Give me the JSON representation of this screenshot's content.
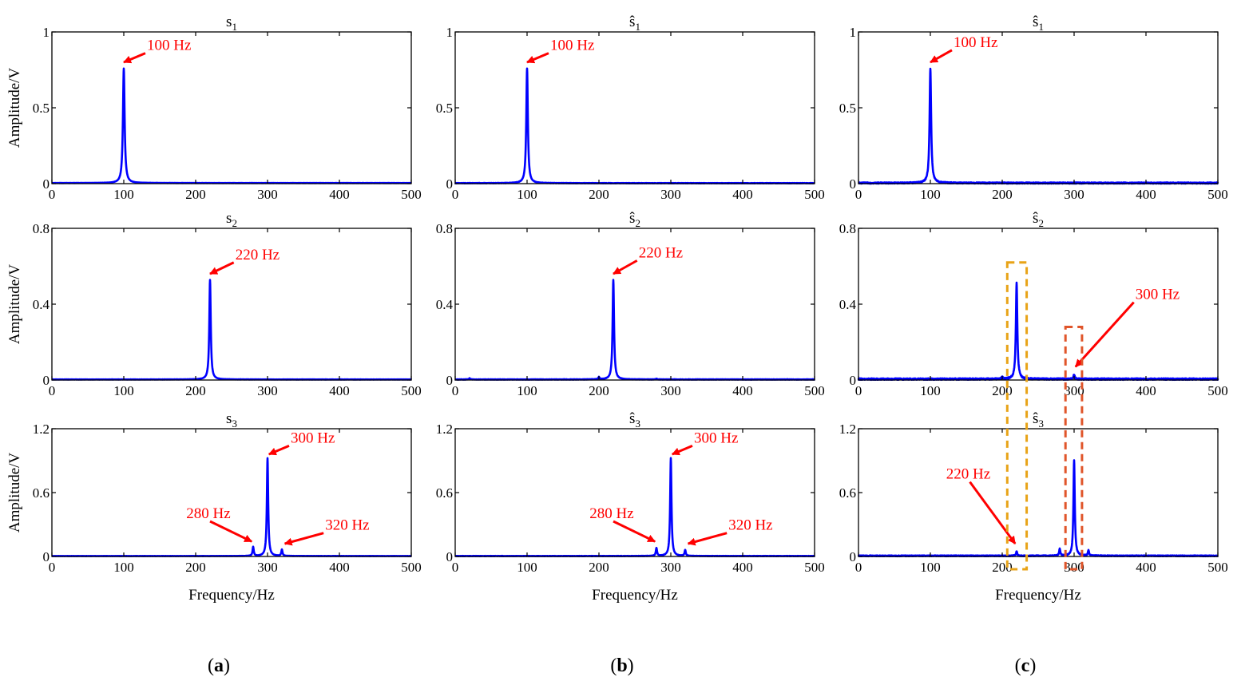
{
  "figure": {
    "column_labels": [
      "a",
      "b",
      "c"
    ],
    "x_axis_label": "Frequency/Hz",
    "y_axis_label": "Amplitude/V",
    "colors": {
      "line": "#0000ff",
      "annotation": "#ff0000",
      "axis": "#000000",
      "highlight_220": "#e8a317",
      "highlight_300": "#e0552a"
    }
  },
  "chart_data": [
    {
      "id": "a1",
      "type": "line",
      "title": "s1",
      "title_base": "s",
      "title_sub": "1",
      "hat": false,
      "xlim": [
        0,
        500
      ],
      "ylim": [
        0,
        1
      ],
      "xticks": [
        0,
        100,
        200,
        300,
        400,
        500
      ],
      "yticks": [
        0,
        0.5,
        1
      ],
      "ytick_labels": [
        "0",
        "0.5",
        "1"
      ],
      "ylabel": "Amplitude/V",
      "xlabel": "",
      "noise": 0.0006,
      "baseline": 0.004,
      "peaks": [
        {
          "f": 100,
          "a": 0.755,
          "w": 1.4
        }
      ],
      "annotations": [
        {
          "text": "100 Hz",
          "target": [
            100,
            0.8
          ],
          "label": [
            130,
            0.86
          ]
        }
      ]
    },
    {
      "id": "b1",
      "type": "line",
      "title": "ŝ1",
      "title_base": "s",
      "title_sub": "1",
      "hat": true,
      "xlim": [
        0,
        500
      ],
      "ylim": [
        0,
        1
      ],
      "xticks": [
        0,
        100,
        200,
        300,
        400,
        500
      ],
      "yticks": [
        0,
        0.5,
        1
      ],
      "ytick_labels": [
        "0",
        "0.5",
        "1"
      ],
      "ylabel": "",
      "xlabel": "",
      "noise": 0.0012,
      "baseline": 0.003,
      "peaks": [
        {
          "f": 100,
          "a": 0.755,
          "w": 1.3
        }
      ],
      "annotations": [
        {
          "text": "100 Hz",
          "target": [
            100,
            0.8
          ],
          "label": [
            130,
            0.86
          ]
        }
      ]
    },
    {
      "id": "c1",
      "type": "line",
      "title": "ŝ1",
      "title_base": "s",
      "title_sub": "1",
      "hat": true,
      "xlim": [
        0,
        500
      ],
      "ylim": [
        0,
        1
      ],
      "xticks": [
        0,
        100,
        200,
        300,
        400,
        500
      ],
      "yticks": [
        0,
        0.5,
        1
      ],
      "ytick_labels": [
        "0",
        "0.5",
        "1"
      ],
      "ylabel": "",
      "xlabel": "",
      "noise": 0.004,
      "baseline": 0.004,
      "peaks": [
        {
          "f": 100,
          "a": 0.755,
          "w": 1.3
        }
      ],
      "annotations": [
        {
          "text": "100 Hz",
          "target": [
            100,
            0.8
          ],
          "label": [
            130,
            0.88
          ]
        }
      ]
    },
    {
      "id": "a2",
      "type": "line",
      "title": "s2",
      "title_base": "s",
      "title_sub": "2",
      "hat": false,
      "xlim": [
        0,
        500
      ],
      "ylim": [
        0,
        0.8
      ],
      "xticks": [
        0,
        100,
        200,
        300,
        400,
        500
      ],
      "yticks": [
        0,
        0.4,
        0.8
      ],
      "ytick_labels": [
        "0",
        "0.4",
        "0.8"
      ],
      "ylabel": "Amplitude/V",
      "xlabel": "",
      "noise": 0.0006,
      "baseline": 0.003,
      "peaks": [
        {
          "f": 220,
          "a": 0.525,
          "w": 1.2
        }
      ],
      "annotations": [
        {
          "text": "220 Hz",
          "target": [
            220,
            0.56
          ],
          "label": [
            253,
            0.62
          ]
        }
      ]
    },
    {
      "id": "b2",
      "type": "line",
      "title": "ŝ2",
      "title_base": "s",
      "title_sub": "2",
      "hat": true,
      "xlim": [
        0,
        500
      ],
      "ylim": [
        0,
        0.8
      ],
      "xticks": [
        0,
        100,
        200,
        300,
        400,
        500
      ],
      "yticks": [
        0,
        0.4,
        0.8
      ],
      "ytick_labels": [
        "0",
        "0.4",
        "0.8"
      ],
      "ylabel": "",
      "xlabel": "",
      "noise": 0.001,
      "baseline": 0.003,
      "peaks": [
        {
          "f": 220,
          "a": 0.525,
          "w": 1.2
        },
        {
          "f": 200,
          "a": 0.012,
          "w": 1
        },
        {
          "f": 20,
          "a": 0.006,
          "w": 1
        },
        {
          "f": 280,
          "a": 0.004,
          "w": 1
        }
      ],
      "annotations": [
        {
          "text": "220 Hz",
          "target": [
            220,
            0.56
          ],
          "label": [
            253,
            0.63
          ]
        }
      ]
    },
    {
      "id": "c2",
      "type": "line",
      "title": "ŝ2",
      "title_base": "s",
      "title_sub": "2",
      "hat": true,
      "xlim": [
        0,
        500
      ],
      "ylim": [
        0,
        0.8
      ],
      "xticks": [
        0,
        100,
        200,
        300,
        400,
        500
      ],
      "yticks": [
        0,
        0.4,
        0.8
      ],
      "ytick_labels": [
        "0",
        "0.4",
        "0.8"
      ],
      "ylabel": "",
      "xlabel": "",
      "noise": 0.004,
      "baseline": 0.005,
      "peaks": [
        {
          "f": 220,
          "a": 0.51,
          "w": 1.2
        },
        {
          "f": 300,
          "a": 0.025,
          "w": 1
        },
        {
          "f": 200,
          "a": 0.01,
          "w": 1
        }
      ],
      "annotations": [
        {
          "text": "300 Hz",
          "target": [
            302,
            0.07
          ],
          "label": [
            383,
            0.41
          ]
        }
      ],
      "highlight_boxes": [
        {
          "xrange": [
            207,
            234
          ],
          "yrange": [
            0.62,
            -0.06
          ],
          "color_key": "highlight_220"
        },
        {
          "xrange": [
            288,
            311
          ],
          "yrange": [
            0.28,
            -0.06
          ],
          "color_key": "highlight_300"
        }
      ]
    },
    {
      "id": "a3",
      "type": "line",
      "title": "s3",
      "title_base": "s",
      "title_sub": "3",
      "hat": false,
      "xlim": [
        0,
        500
      ],
      "ylim": [
        0,
        1.2
      ],
      "xticks": [
        0,
        100,
        200,
        300,
        400,
        500
      ],
      "yticks": [
        0,
        0.6,
        1.2
      ],
      "ytick_labels": [
        "0",
        "0.6",
        "1.2"
      ],
      "ylabel": "Amplitude/V",
      "xlabel": "Frequency/Hz",
      "noise": 0.0008,
      "baseline": 0.004,
      "peaks": [
        {
          "f": 300,
          "a": 0.92,
          "w": 1.1
        },
        {
          "f": 280,
          "a": 0.085,
          "w": 1
        },
        {
          "f": 320,
          "a": 0.06,
          "w": 1
        }
      ],
      "annotations": [
        {
          "text": "300 Hz",
          "target": [
            302,
            0.96
          ],
          "label": [
            330,
            1.04
          ]
        },
        {
          "text": "280 Hz",
          "target": [
            278,
            0.14
          ],
          "label": [
            220,
            0.33
          ]
        },
        {
          "text": "320 Hz",
          "target": [
            324,
            0.12
          ],
          "label": [
            378,
            0.22
          ]
        }
      ]
    },
    {
      "id": "b3",
      "type": "line",
      "title": "ŝ3",
      "title_base": "s",
      "title_sub": "3",
      "hat": true,
      "xlim": [
        0,
        500
      ],
      "ylim": [
        0,
        1.2
      ],
      "xticks": [
        0,
        100,
        200,
        300,
        400,
        500
      ],
      "yticks": [
        0,
        0.6,
        1.2
      ],
      "ytick_labels": [
        "0",
        "0.6",
        "1.2"
      ],
      "ylabel": "",
      "xlabel": "Frequency/Hz",
      "noise": 0.0014,
      "baseline": 0.004,
      "peaks": [
        {
          "f": 300,
          "a": 0.92,
          "w": 1.1
        },
        {
          "f": 280,
          "a": 0.075,
          "w": 1
        },
        {
          "f": 320,
          "a": 0.055,
          "w": 1
        }
      ],
      "annotations": [
        {
          "text": "300 Hz",
          "target": [
            302,
            0.96
          ],
          "label": [
            330,
            1.04
          ]
        },
        {
          "text": "280 Hz",
          "target": [
            278,
            0.14
          ],
          "label": [
            220,
            0.33
          ]
        },
        {
          "text": "320 Hz",
          "target": [
            324,
            0.12
          ],
          "label": [
            378,
            0.22
          ]
        }
      ]
    },
    {
      "id": "c3",
      "type": "line",
      "title": "ŝ3",
      "title_base": "s",
      "title_sub": "3",
      "hat": true,
      "xlim": [
        0,
        500
      ],
      "ylim": [
        0,
        1.2
      ],
      "xticks": [
        0,
        100,
        200,
        300,
        400,
        500
      ],
      "yticks": [
        0,
        0.6,
        1.2
      ],
      "ytick_labels": [
        "0",
        "0.6",
        "1.2"
      ],
      "ylabel": "",
      "xlabel": "Frequency/Hz",
      "noise": 0.004,
      "baseline": 0.006,
      "peaks": [
        {
          "f": 300,
          "a": 0.9,
          "w": 1.1
        },
        {
          "f": 280,
          "a": 0.065,
          "w": 1
        },
        {
          "f": 320,
          "a": 0.05,
          "w": 1
        },
        {
          "f": 220,
          "a": 0.04,
          "w": 1
        }
      ],
      "annotations": [
        {
          "text": "220 Hz",
          "target": [
            218,
            0.12
          ],
          "label": [
            155,
            0.7
          ]
        }
      ]
    }
  ]
}
